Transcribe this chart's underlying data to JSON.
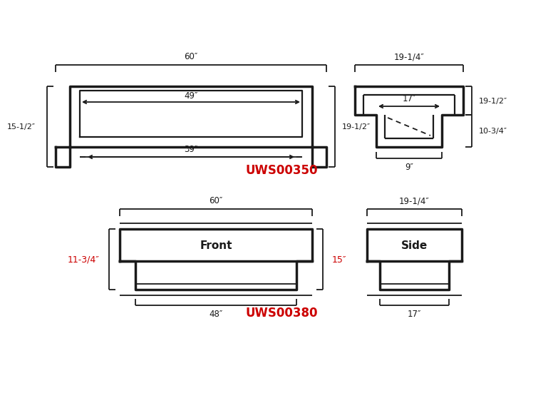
{
  "bg_color": "#ffffff",
  "lc": "#1a1a1a",
  "rc": "#cc0000",
  "lw_thick": 2.5,
  "lw_thin": 1.3,
  "fs_dim": 8.5,
  "fs_label": 11,
  "label_top": "UWS00350",
  "label_bot": "UWS00380",
  "dims_top_front": {
    "60": "60″",
    "49": "49″",
    "39": "39″",
    "15h": "15-1/2″",
    "19h": "19-1/2″"
  },
  "dims_top_side": {
    "19q": "19-1/4″",
    "17": "17″",
    "19h": "19-1/2″",
    "10q": "10-3/4″",
    "9": "9″"
  },
  "dims_bot_front": {
    "60": "60″",
    "48": "48″",
    "15": "15″",
    "11q": "11-3/4″",
    "front": "Front"
  },
  "dims_bot_side": {
    "19q": "19-1/4″",
    "17": "17″",
    "side": "Side"
  }
}
